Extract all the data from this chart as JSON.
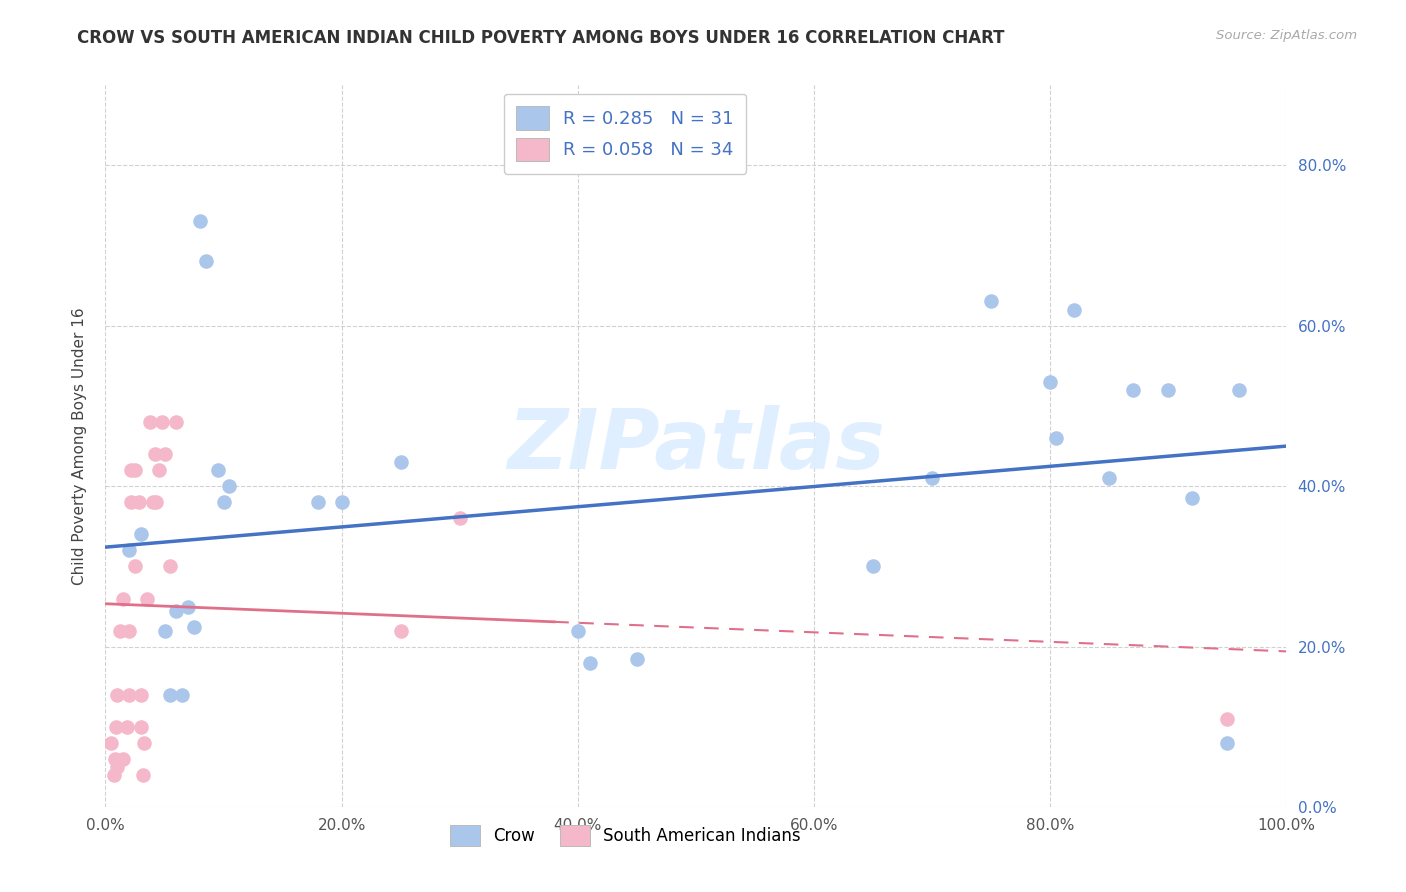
{
  "title": "CROW VS SOUTH AMERICAN INDIAN CHILD POVERTY AMONG BOYS UNDER 16 CORRELATION CHART",
  "source": "Source: ZipAtlas.com",
  "ylabel": "Child Poverty Among Boys Under 16",
  "crow_R": "0.285",
  "crow_N": "31",
  "sa_R": "0.058",
  "sa_N": "34",
  "crow_scatter_color": "#aac6ea",
  "crow_line_color": "#4472c4",
  "sa_scatter_color": "#f4b8ca",
  "sa_line_color": "#e0708a",
  "tick_right_color": "#4472c4",
  "watermark_text": "ZIPatlas",
  "watermark_color": "#ddeeff",
  "crow_points_x": [
    0.02,
    0.03,
    0.05,
    0.055,
    0.06,
    0.065,
    0.07,
    0.075,
    0.08,
    0.085,
    0.095,
    0.1,
    0.105,
    0.18,
    0.2,
    0.25,
    0.4,
    0.41,
    0.45,
    0.65,
    0.7,
    0.75,
    0.8,
    0.805,
    0.82,
    0.85,
    0.87,
    0.9,
    0.92,
    0.95,
    0.96
  ],
  "crow_points_y": [
    0.32,
    0.34,
    0.22,
    0.14,
    0.245,
    0.14,
    0.25,
    0.225,
    0.73,
    0.68,
    0.42,
    0.38,
    0.4,
    0.38,
    0.38,
    0.43,
    0.22,
    0.18,
    0.185,
    0.3,
    0.41,
    0.63,
    0.53,
    0.46,
    0.62,
    0.41,
    0.52,
    0.52,
    0.385,
    0.08,
    0.52
  ],
  "sa_points_x": [
    0.005,
    0.007,
    0.008,
    0.009,
    0.01,
    0.01,
    0.012,
    0.015,
    0.015,
    0.018,
    0.02,
    0.02,
    0.022,
    0.022,
    0.025,
    0.025,
    0.028,
    0.03,
    0.03,
    0.032,
    0.033,
    0.035,
    0.038,
    0.04,
    0.042,
    0.043,
    0.045,
    0.048,
    0.05,
    0.055,
    0.06,
    0.25,
    0.3,
    0.95
  ],
  "sa_points_y": [
    0.08,
    0.04,
    0.06,
    0.1,
    0.05,
    0.14,
    0.22,
    0.06,
    0.26,
    0.1,
    0.14,
    0.22,
    0.42,
    0.38,
    0.42,
    0.3,
    0.38,
    0.14,
    0.1,
    0.04,
    0.08,
    0.26,
    0.48,
    0.38,
    0.44,
    0.38,
    0.42,
    0.48,
    0.44,
    0.3,
    0.48,
    0.22,
    0.36,
    0.11
  ],
  "xlim": [
    0.0,
    1.0
  ],
  "ylim": [
    0.0,
    0.9
  ],
  "xticks": [
    0.0,
    0.2,
    0.4,
    0.6,
    0.8,
    1.0
  ],
  "yticks": [
    0.0,
    0.2,
    0.4,
    0.6,
    0.8
  ],
  "figsize": [
    14.06,
    8.92
  ],
  "dpi": 100,
  "bg_color": "#ffffff",
  "grid_color": "#cccccc",
  "scatter_size": 110,
  "crow_label": "Crow",
  "sa_label": "South American Indians"
}
